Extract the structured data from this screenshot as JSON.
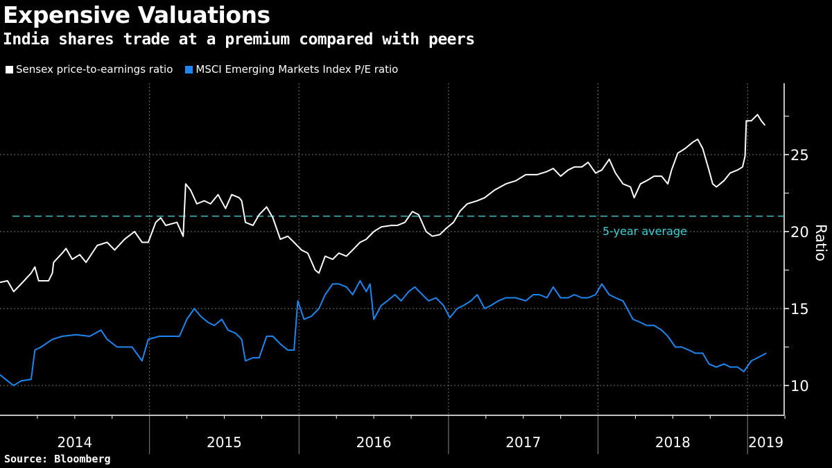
{
  "title": "Expensive Valuations",
  "subtitle": "India shares trade at a premium compared with peers",
  "source": "Source: Bloomberg",
  "chart_data": {
    "type": "line",
    "title": "Expensive Valuations",
    "ylabel": "Ratio",
    "xlabel": "",
    "x_unit": "months since Jan 2014",
    "ylim": [
      8,
      29.6
    ],
    "yticks": [
      10,
      15,
      20,
      25
    ],
    "yminor": [
      12.5,
      17.5,
      22.5,
      27.5
    ],
    "xlim": [
      0,
      63
    ],
    "year_labels": [
      "2014",
      "2015",
      "2016",
      "2017",
      "2018",
      "2019"
    ],
    "grid": true,
    "legend_position": "top-left",
    "reference_line": {
      "label": "5-year average",
      "value": 21.0,
      "color": "#3fd0d4"
    },
    "series": [
      {
        "name": "Sensex price-to-earnings ratio",
        "color": "#ffffff",
        "points": [
          [
            0,
            16.7
          ],
          [
            0.6,
            16.8
          ],
          [
            1.1,
            16.1
          ],
          [
            1.7,
            16.6
          ],
          [
            2.5,
            17.3
          ],
          [
            2.8,
            17.7
          ],
          [
            3.1,
            16.8
          ],
          [
            3.9,
            16.8
          ],
          [
            4.2,
            17.3
          ],
          [
            4.3,
            18.0
          ],
          [
            5,
            18.6
          ],
          [
            5.3,
            18.9
          ],
          [
            5.8,
            18.2
          ],
          [
            6.4,
            18.5
          ],
          [
            6.9,
            18.0
          ],
          [
            7.8,
            19.1
          ],
          [
            8.6,
            19.3
          ],
          [
            9.2,
            18.8
          ],
          [
            10,
            19.5
          ],
          [
            10.8,
            20.0
          ],
          [
            11.4,
            19.3
          ],
          [
            11.9,
            19.3
          ],
          [
            12.5,
            20.6
          ],
          [
            12.9,
            20.9
          ],
          [
            13.3,
            20.4
          ],
          [
            14.2,
            20.6
          ],
          [
            14.7,
            19.7
          ],
          [
            14.9,
            23.1
          ],
          [
            15.3,
            22.7
          ],
          [
            15.8,
            21.8
          ],
          [
            16.4,
            22.0
          ],
          [
            16.9,
            21.8
          ],
          [
            17.5,
            22.4
          ],
          [
            18.1,
            21.5
          ],
          [
            18.6,
            22.4
          ],
          [
            19.2,
            22.2
          ],
          [
            19.4,
            22.0
          ],
          [
            19.7,
            20.6
          ],
          [
            20.3,
            20.4
          ],
          [
            20.8,
            21.1
          ],
          [
            21.4,
            21.6
          ],
          [
            21.9,
            20.9
          ],
          [
            22.5,
            19.5
          ],
          [
            23.1,
            19.7
          ],
          [
            23.6,
            19.3
          ],
          [
            24.2,
            18.8
          ],
          [
            24.7,
            18.6
          ],
          [
            25.3,
            17.5
          ],
          [
            25.6,
            17.3
          ],
          [
            26.1,
            18.4
          ],
          [
            26.7,
            18.2
          ],
          [
            27.2,
            18.6
          ],
          [
            27.8,
            18.4
          ],
          [
            28.3,
            18.8
          ],
          [
            28.9,
            19.3
          ],
          [
            29.4,
            19.5
          ],
          [
            30,
            20.0
          ],
          [
            30.6,
            20.3
          ],
          [
            31.4,
            20.4
          ],
          [
            31.9,
            20.4
          ],
          [
            32.5,
            20.6
          ],
          [
            33.1,
            21.3
          ],
          [
            33.6,
            21.1
          ],
          [
            34.2,
            20.0
          ],
          [
            34.7,
            19.7
          ],
          [
            35.3,
            19.8
          ],
          [
            35.8,
            20.2
          ],
          [
            36.4,
            20.6
          ],
          [
            36.9,
            21.3
          ],
          [
            37.5,
            21.8
          ],
          [
            38.3,
            22.0
          ],
          [
            38.9,
            22.2
          ],
          [
            39.7,
            22.7
          ],
          [
            40.6,
            23.1
          ],
          [
            41.4,
            23.3
          ],
          [
            42.2,
            23.7
          ],
          [
            43.1,
            23.7
          ],
          [
            43.9,
            23.9
          ],
          [
            44.4,
            24.1
          ],
          [
            45,
            23.6
          ],
          [
            45.6,
            24.0
          ],
          [
            46.1,
            24.2
          ],
          [
            46.7,
            24.2
          ],
          [
            47.2,
            24.5
          ],
          [
            47.8,
            23.8
          ],
          [
            48.3,
            24.0
          ],
          [
            48.9,
            24.7
          ],
          [
            49.4,
            23.8
          ],
          [
            50,
            23.1
          ],
          [
            50.6,
            22.9
          ],
          [
            50.9,
            22.2
          ],
          [
            51.4,
            23.1
          ],
          [
            51.9,
            23.3
          ],
          [
            52.5,
            23.6
          ],
          [
            53.1,
            23.6
          ],
          [
            53.6,
            23.1
          ],
          [
            53.9,
            24.0
          ],
          [
            54.4,
            25.1
          ],
          [
            55,
            25.4
          ],
          [
            55.6,
            25.8
          ],
          [
            56,
            26.0
          ],
          [
            56.4,
            25.4
          ],
          [
            56.9,
            24.0
          ],
          [
            57.2,
            23.1
          ],
          [
            57.5,
            22.9
          ],
          [
            58.1,
            23.3
          ],
          [
            58.6,
            23.8
          ],
          [
            59.2,
            24.0
          ],
          [
            59.6,
            24.2
          ],
          [
            59.8,
            24.9
          ],
          [
            59.9,
            27.2
          ],
          [
            60.3,
            27.2
          ],
          [
            60.8,
            27.6
          ],
          [
            61.1,
            27.2
          ],
          [
            61.4,
            26.9
          ]
        ]
      },
      {
        "name": "MSCI Emerging Markets Index P/E ratio",
        "color": "#1f86f0",
        "points": [
          [
            0,
            10.7
          ],
          [
            0.6,
            10.3
          ],
          [
            1.1,
            10.0
          ],
          [
            1.7,
            10.3
          ],
          [
            2.5,
            10.4
          ],
          [
            2.8,
            12.3
          ],
          [
            3.3,
            12.5
          ],
          [
            4.2,
            13.0
          ],
          [
            5,
            13.2
          ],
          [
            6.1,
            13.3
          ],
          [
            7.2,
            13.2
          ],
          [
            8.1,
            13.6
          ],
          [
            8.6,
            13.0
          ],
          [
            9.4,
            12.5
          ],
          [
            10.6,
            12.5
          ],
          [
            11.4,
            11.6
          ],
          [
            11.9,
            13.0
          ],
          [
            12.8,
            13.2
          ],
          [
            13.6,
            13.2
          ],
          [
            14.4,
            13.2
          ],
          [
            15,
            14.3
          ],
          [
            15.6,
            15.0
          ],
          [
            16.1,
            14.5
          ],
          [
            16.7,
            14.1
          ],
          [
            17.2,
            13.9
          ],
          [
            17.8,
            14.3
          ],
          [
            18.3,
            13.6
          ],
          [
            18.9,
            13.4
          ],
          [
            19.4,
            13.0
          ],
          [
            19.7,
            11.6
          ],
          [
            20.3,
            11.8
          ],
          [
            20.8,
            11.8
          ],
          [
            21.4,
            13.2
          ],
          [
            21.9,
            13.2
          ],
          [
            22.5,
            12.7
          ],
          [
            23.1,
            12.3
          ],
          [
            23.6,
            12.3
          ],
          [
            23.9,
            15.5
          ],
          [
            24.4,
            14.3
          ],
          [
            25,
            14.5
          ],
          [
            25.6,
            15.0
          ],
          [
            26.1,
            15.9
          ],
          [
            26.7,
            16.6
          ],
          [
            27.2,
            16.6
          ],
          [
            27.8,
            16.4
          ],
          [
            28.3,
            15.9
          ],
          [
            28.9,
            16.8
          ],
          [
            29.4,
            16.1
          ],
          [
            29.7,
            16.6
          ],
          [
            30,
            14.3
          ],
          [
            30.6,
            15.2
          ],
          [
            31.1,
            15.5
          ],
          [
            31.7,
            15.9
          ],
          [
            32.2,
            15.5
          ],
          [
            32.8,
            16.1
          ],
          [
            33.3,
            16.4
          ],
          [
            33.9,
            15.9
          ],
          [
            34.4,
            15.5
          ],
          [
            35,
            15.7
          ],
          [
            35.6,
            15.2
          ],
          [
            36.1,
            14.4
          ],
          [
            36.7,
            15.0
          ],
          [
            37.2,
            15.2
          ],
          [
            37.8,
            15.5
          ],
          [
            38.3,
            15.9
          ],
          [
            38.9,
            15.0
          ],
          [
            39.4,
            15.2
          ],
          [
            40,
            15.5
          ],
          [
            40.6,
            15.7
          ],
          [
            41.4,
            15.7
          ],
          [
            42.2,
            15.5
          ],
          [
            42.8,
            15.9
          ],
          [
            43.3,
            15.9
          ],
          [
            43.9,
            15.7
          ],
          [
            44.4,
            16.4
          ],
          [
            45,
            15.7
          ],
          [
            45.6,
            15.7
          ],
          [
            46.1,
            15.9
          ],
          [
            46.7,
            15.7
          ],
          [
            47.2,
            15.7
          ],
          [
            47.8,
            15.9
          ],
          [
            48.3,
            16.6
          ],
          [
            48.9,
            15.9
          ],
          [
            49.4,
            15.7
          ],
          [
            50,
            15.5
          ],
          [
            50.8,
            14.3
          ],
          [
            51.4,
            14.1
          ],
          [
            51.9,
            13.9
          ],
          [
            52.5,
            13.9
          ],
          [
            53.1,
            13.6
          ],
          [
            53.6,
            13.2
          ],
          [
            54.2,
            12.5
          ],
          [
            54.7,
            12.5
          ],
          [
            55.3,
            12.3
          ],
          [
            55.8,
            12.1
          ],
          [
            56.4,
            12.1
          ],
          [
            56.9,
            11.4
          ],
          [
            57.5,
            11.2
          ],
          [
            58.1,
            11.4
          ],
          [
            58.6,
            11.2
          ],
          [
            59.2,
            11.2
          ],
          [
            59.7,
            10.9
          ],
          [
            60.3,
            11.6
          ],
          [
            60.8,
            11.8
          ],
          [
            61.5,
            12.1
          ]
        ]
      }
    ]
  }
}
